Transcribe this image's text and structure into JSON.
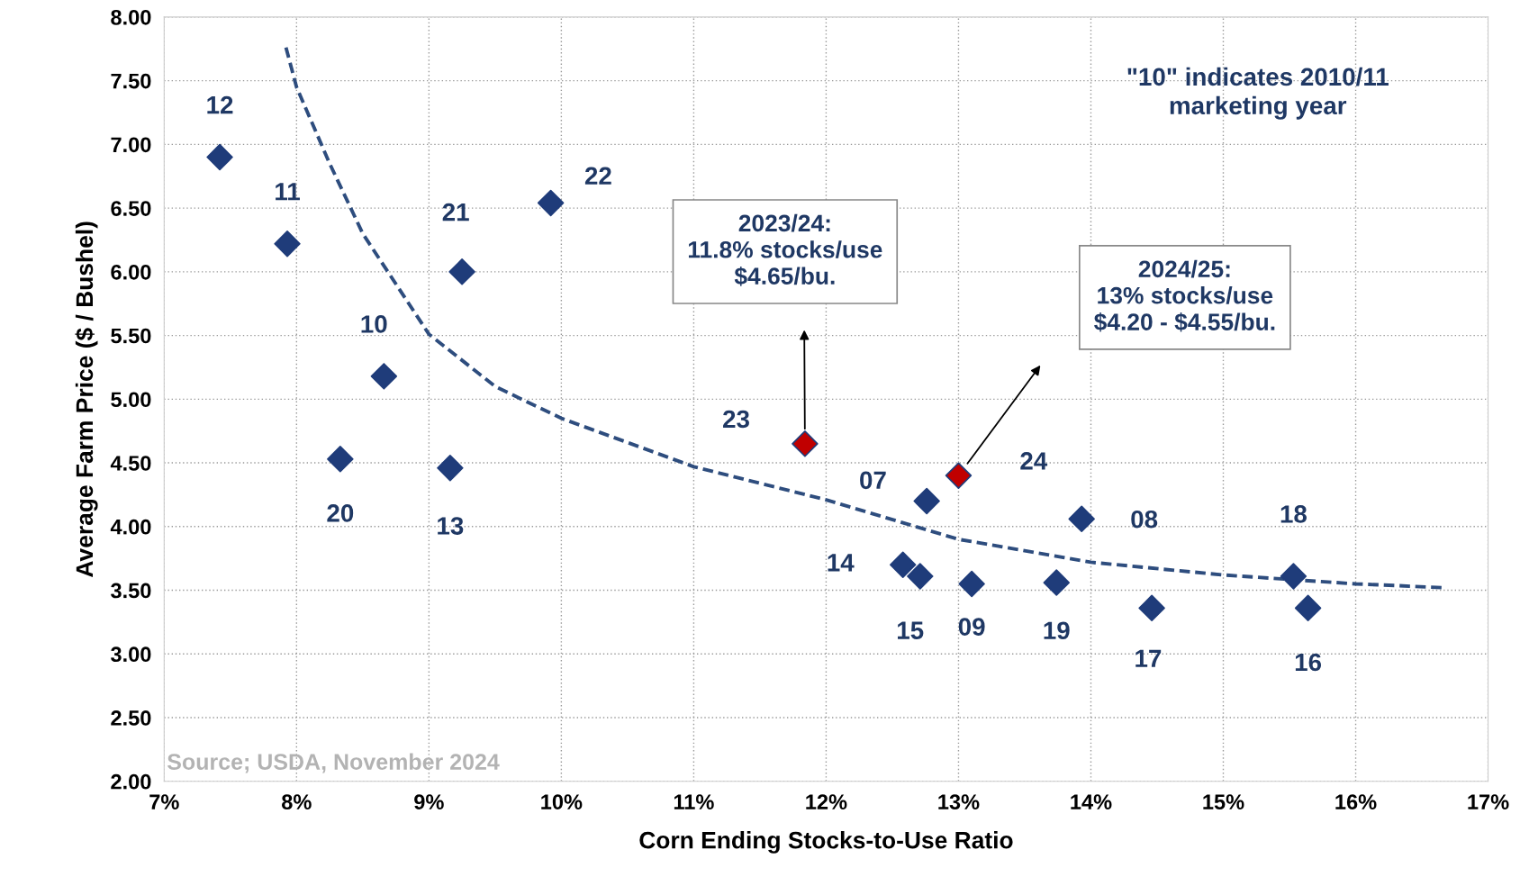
{
  "chart_data": {
    "type": "scatter",
    "xlabel": "Corn Ending Stocks-to-Use Ratio",
    "ylabel": "Average Farm Price ($ / Bushel)",
    "xlim": [
      7,
      17
    ],
    "ylim": [
      2,
      8
    ],
    "xticks": [
      {
        "value": 7,
        "label": "7%"
      },
      {
        "value": 8,
        "label": "8%"
      },
      {
        "value": 9,
        "label": "9%"
      },
      {
        "value": 10,
        "label": "10%"
      },
      {
        "value": 11,
        "label": "11%"
      },
      {
        "value": 12,
        "label": "12%"
      },
      {
        "value": 13,
        "label": "13%"
      },
      {
        "value": 14,
        "label": "14%"
      },
      {
        "value": 15,
        "label": "15%"
      },
      {
        "value": 16,
        "label": "16%"
      },
      {
        "value": 17,
        "label": "17%"
      }
    ],
    "yticks": [
      {
        "value": 2,
        "label": "2.00"
      },
      {
        "value": 2.5,
        "label": "2.50"
      },
      {
        "value": 3,
        "label": "3.00"
      },
      {
        "value": 3.5,
        "label": "3.50"
      },
      {
        "value": 4,
        "label": "4.00"
      },
      {
        "value": 4.5,
        "label": "4.50"
      },
      {
        "value": 5,
        "label": "5.00"
      },
      {
        "value": 5.5,
        "label": "5.50"
      },
      {
        "value": 6,
        "label": "6.00"
      },
      {
        "value": 6.5,
        "label": "6.50"
      },
      {
        "value": 7,
        "label": "7.00"
      },
      {
        "value": 7.5,
        "label": "7.50"
      },
      {
        "value": 8,
        "label": "8.00"
      }
    ],
    "grid": true,
    "legend": false,
    "series": [
      {
        "type": "line",
        "line_style": "dashed",
        "marker": "none",
        "color": "#2e4d7e",
        "x": [
          7.92,
          8.0,
          8.25,
          8.5,
          9.0,
          9.5,
          10.0,
          11.0,
          12.0,
          13.0,
          14.0,
          15.0,
          16.0,
          16.67
        ],
        "values": [
          7.76,
          7.45,
          6.85,
          6.3,
          5.51,
          5.1,
          4.85,
          4.47,
          4.21,
          3.9,
          3.72,
          3.62,
          3.55,
          3.52
        ]
      },
      {
        "type": "scatter",
        "marker": "diamond",
        "color": "#1f3c7a",
        "x": [
          7.42,
          7.93,
          8.66,
          8.33,
          9.16,
          9.25,
          9.92,
          11.84,
          12.76,
          13.0,
          12.58,
          12.71,
          13.1,
          13.74,
          13.93,
          14.46,
          15.53,
          15.64
        ],
        "values": [
          6.9,
          6.22,
          5.18,
          4.53,
          4.46,
          6.0,
          6.54,
          4.65,
          4.2,
          4.4,
          3.7,
          3.61,
          3.55,
          3.56,
          4.06,
          3.36,
          3.61,
          3.36
        ],
        "colors": [
          "#1f3c7a",
          "#1f3c7a",
          "#1f3c7a",
          "#1f3c7a",
          "#1f3c7a",
          "#1f3c7a",
          "#1f3c7a",
          "#c00000",
          "#1f3c7a",
          "#c00000",
          "#1f3c7a",
          "#1f3c7a",
          "#1f3c7a",
          "#1f3c7a",
          "#1f3c7a",
          "#1f3c7a",
          "#1f3c7a",
          "#1f3c7a"
        ]
      }
    ],
    "annotations": [
      {
        "text": "12",
        "x": 7.42,
        "y": 6.9
      },
      {
        "text": "11",
        "x": 7.93,
        "y": 6.22
      },
      {
        "text": "10",
        "x": 8.66,
        "y": 5.18
      },
      {
        "text": "20",
        "x": 8.33,
        "y": 4.53
      },
      {
        "text": "13",
        "x": 9.16,
        "y": 4.46
      },
      {
        "text": "21",
        "x": 9.25,
        "y": 6.0
      },
      {
        "text": "22",
        "x": 9.92,
        "y": 6.54
      },
      {
        "text": "23",
        "x": 11.84,
        "y": 4.65
      },
      {
        "text": "07",
        "x": 12.76,
        "y": 4.2
      },
      {
        "text": "24",
        "x": 13.0,
        "y": 4.4
      },
      {
        "text": "14",
        "x": 12.58,
        "y": 3.7
      },
      {
        "text": "15",
        "x": 12.71,
        "y": 3.61
      },
      {
        "text": "09",
        "x": 13.1,
        "y": 3.55
      },
      {
        "text": "19",
        "x": 13.74,
        "y": 3.56
      },
      {
        "text": "08",
        "x": 13.93,
        "y": 4.06
      },
      {
        "text": "17",
        "x": 14.46,
        "y": 3.36
      },
      {
        "text": "18",
        "x": 15.53,
        "y": 3.61
      },
      {
        "text": "16",
        "x": 15.64,
        "y": 3.36
      },
      "2023/24:\n11.8% stocks/use\n$4.65/bu.",
      "2024/25:\n13% stocks/use\n$4.20 - $4.55/bu.",
      "\"10\" indicates 2010/11\nmarketing year",
      "Source; USDA, November 2024"
    ]
  }
}
